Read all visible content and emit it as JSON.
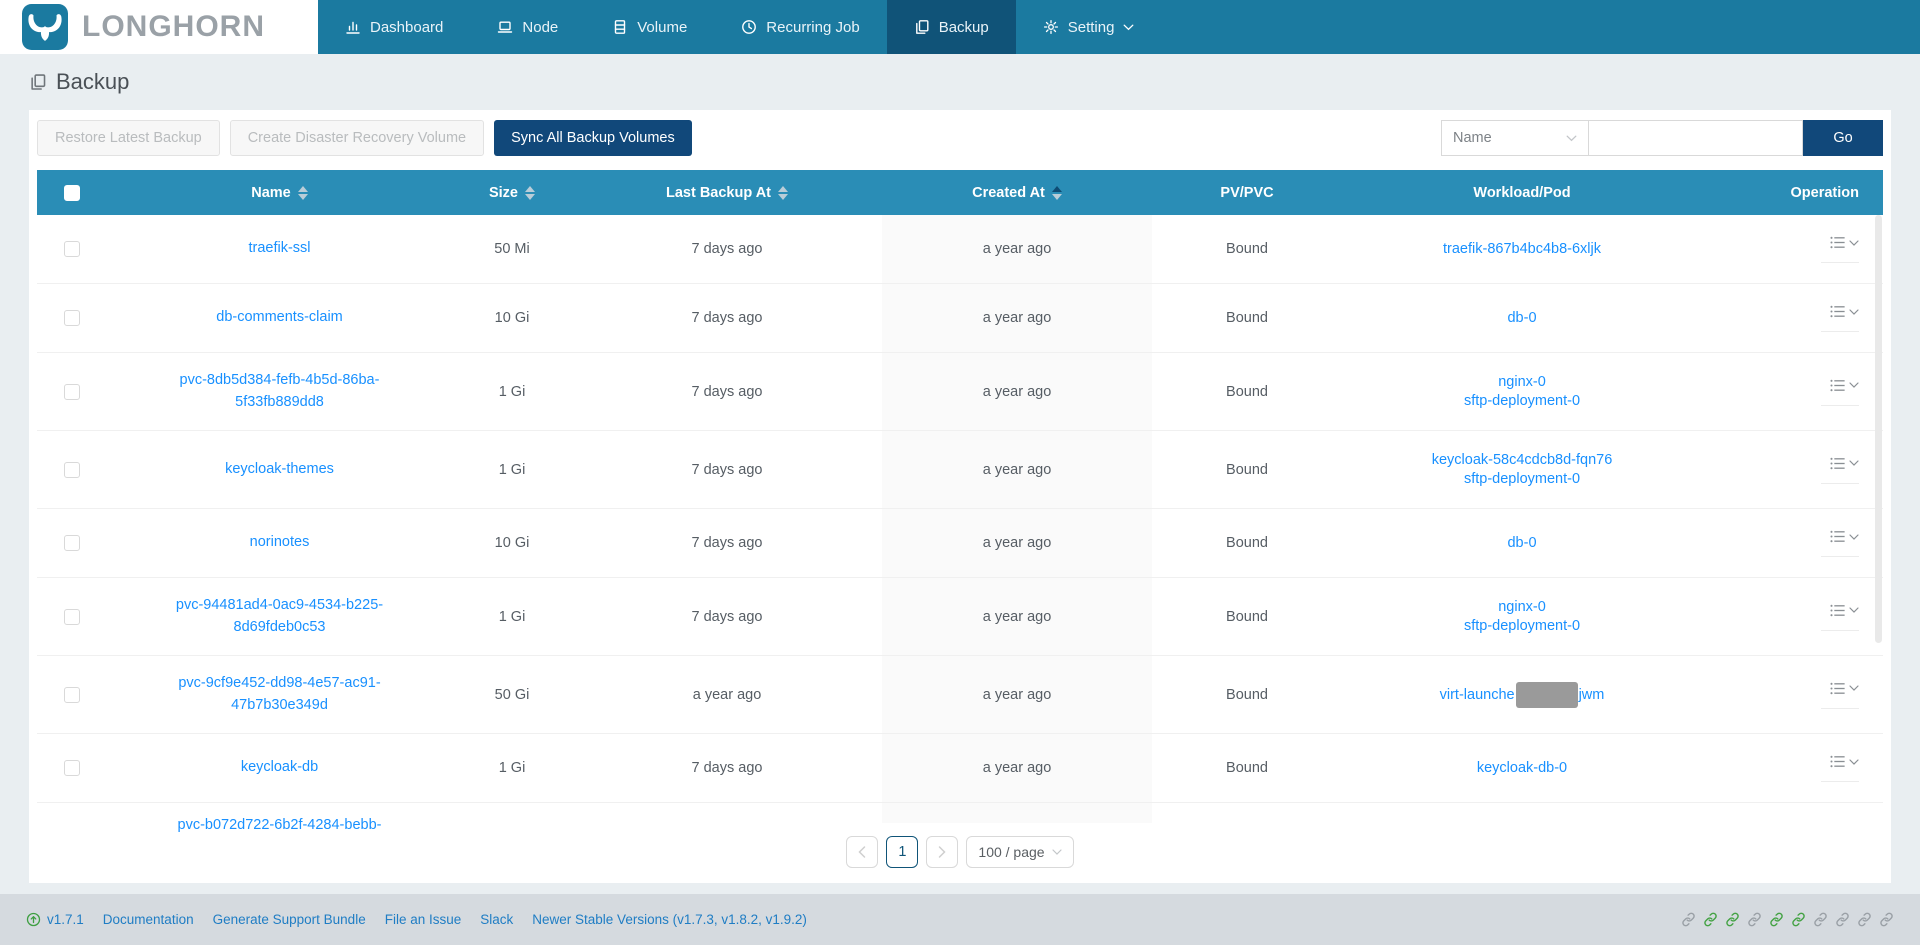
{
  "nav": {
    "logo_text": "LONGHORN",
    "items": [
      {
        "label": "Dashboard",
        "icon": "bar-chart-icon",
        "active": false
      },
      {
        "label": "Node",
        "icon": "laptop-icon",
        "active": false
      },
      {
        "label": "Volume",
        "icon": "database-icon",
        "active": false
      },
      {
        "label": "Recurring Job",
        "icon": "clock-icon",
        "active": false
      },
      {
        "label": "Backup",
        "icon": "copy-icon",
        "active": true
      },
      {
        "label": "Setting",
        "icon": "gear-icon",
        "active": false,
        "has_dropdown": true
      }
    ]
  },
  "page": {
    "title": "Backup"
  },
  "toolbar": {
    "restore_latest": "Restore Latest Backup",
    "create_dr": "Create Disaster Recovery Volume",
    "sync_all": "Sync All Backup Volumes",
    "filter_selected": "Name",
    "search_value": "",
    "go": "Go"
  },
  "table": {
    "columns": [
      "Name",
      "Size",
      "Last Backup At",
      "Created At",
      "PV/PVC",
      "Workload/Pod",
      "Operation"
    ],
    "sorted_by": "Created At",
    "sort_direction": "ascending",
    "rows": [
      {
        "name": "traefik-ssl",
        "size": "50 Mi",
        "last_backup": "7 days ago",
        "created": "a year ago",
        "pv_pvc": "Bound",
        "workloads": [
          "traefik-867b4bc4b8-6xljk"
        ],
        "tall": false
      },
      {
        "name": "db-comments-claim",
        "size": "10 Gi",
        "last_backup": "7 days ago",
        "created": "a year ago",
        "pv_pvc": "Bound",
        "workloads": [
          "db-0"
        ],
        "tall": false
      },
      {
        "name": "pvc-8db5d384-fefb-4b5d-86ba-5f33fb889dd8",
        "size": "1 Gi",
        "last_backup": "7 days ago",
        "created": "a year ago",
        "pv_pvc": "Bound",
        "workloads": [
          "nginx-0",
          "sftp-deployment-0"
        ],
        "tall": true
      },
      {
        "name": "keycloak-themes",
        "size": "1 Gi",
        "last_backup": "7 days ago",
        "created": "a year ago",
        "pv_pvc": "Bound",
        "workloads": [
          "keycloak-58c4cdcb8d-fqn76",
          "sftp-deployment-0"
        ],
        "tall": true
      },
      {
        "name": "norinotes",
        "size": "10 Gi",
        "last_backup": "7 days ago",
        "created": "a year ago",
        "pv_pvc": "Bound",
        "workloads": [
          "db-0"
        ],
        "tall": false
      },
      {
        "name": "pvc-94481ad4-0ac9-4534-b225-8d69fdeb0c53",
        "size": "1 Gi",
        "last_backup": "7 days ago",
        "created": "a year ago",
        "pv_pvc": "Bound",
        "workloads": [
          "nginx-0",
          "sftp-deployment-0"
        ],
        "tall": true
      },
      {
        "name": "pvc-9cf9e452-dd98-4e57-ac91-47b7b30e349d",
        "size": "50 Gi",
        "last_backup": "a year ago",
        "created": "a year ago",
        "pv_pvc": "Bound",
        "workloads": [
          {
            "prefix": "virt-launche",
            "censored": true,
            "suffix": "jwm"
          }
        ],
        "tall": true
      },
      {
        "name": "keycloak-db",
        "size": "1 Gi",
        "last_backup": "7 days ago",
        "created": "a year ago",
        "pv_pvc": "Bound",
        "workloads": [
          "keycloak-db-0"
        ],
        "tall": false
      },
      {
        "name": "pvc-b072d722-6b2f-4284-bebb-",
        "size": "",
        "last_backup": "",
        "created": "",
        "pv_pvc": "",
        "workloads": [],
        "partial": true
      }
    ]
  },
  "pagination": {
    "current": "1",
    "page_size": "100 / page"
  },
  "footer": {
    "version": "v1.7.1",
    "links": [
      "Documentation",
      "Generate Support Bundle",
      "File an Issue",
      "Slack",
      "Newer Stable Versions (v1.7.3, v1.8.2, v1.9.2)"
    ],
    "status_icons": [
      {
        "icon": "link-icon",
        "color": "gray"
      },
      {
        "icon": "link-icon",
        "color": "green"
      },
      {
        "icon": "link-icon",
        "color": "green"
      },
      {
        "icon": "link-icon",
        "color": "gray"
      },
      {
        "icon": "link-icon",
        "color": "green"
      },
      {
        "icon": "link-icon",
        "color": "green"
      },
      {
        "icon": "link-icon",
        "color": "gray"
      },
      {
        "icon": "link-icon",
        "color": "gray"
      },
      {
        "icon": "link-icon",
        "color": "gray"
      },
      {
        "icon": "link-icon",
        "color": "gray"
      }
    ]
  },
  "colors": {
    "nav_bg": "#1b7aa0",
    "nav_active_bg": "#105378",
    "table_header_bg": "#2a8db6",
    "primary_button_bg": "#11487a",
    "link_blue": "#1890ff",
    "sorted_caret": "#0f4c74",
    "status_green": "#44a244",
    "status_gray": "#9aa0a6"
  }
}
